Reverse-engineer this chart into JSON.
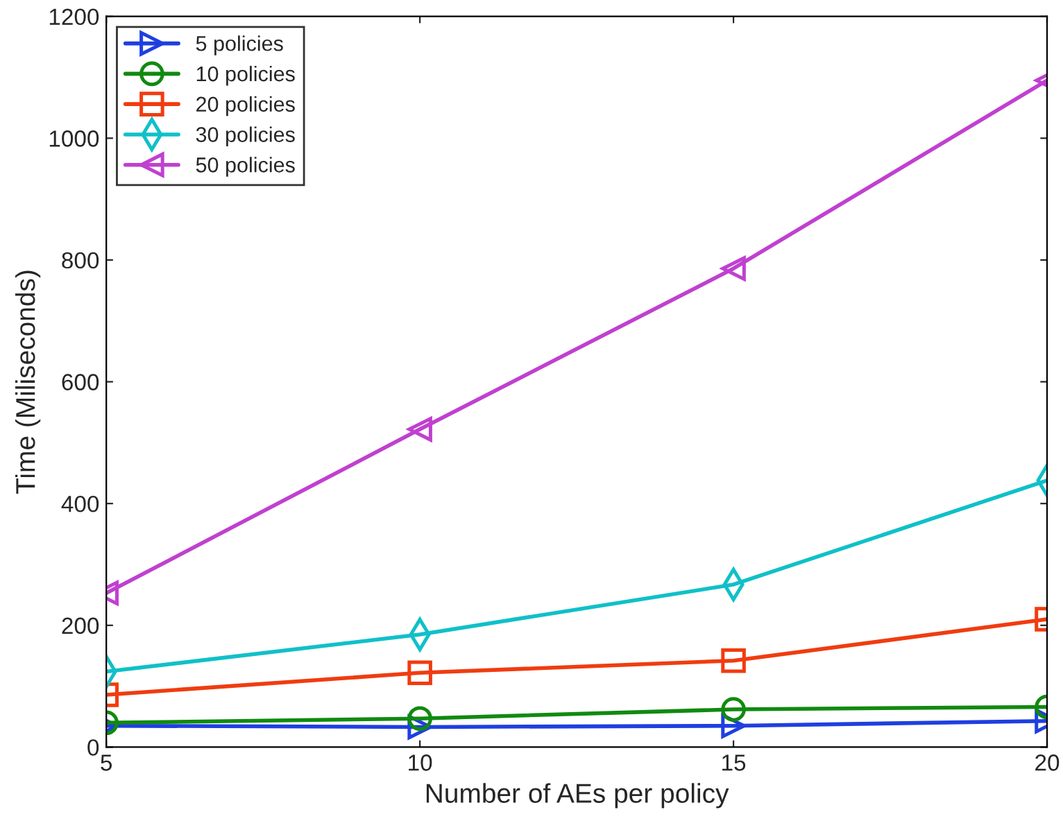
{
  "chart_data": {
    "type": "line",
    "xlabel": "Number of AEs per policy",
    "ylabel": "Time (Miliseconds)",
    "x": [
      5,
      10,
      15,
      20
    ],
    "series": [
      {
        "name": "5 policies",
        "color": "#1f3fe0",
        "marker": "triangle-right",
        "values": [
          35,
          33,
          35,
          43
        ]
      },
      {
        "name": "10 policies",
        "color": "#108a10",
        "marker": "circle",
        "values": [
          40,
          47,
          62,
          66
        ]
      },
      {
        "name": "20 policies",
        "color": "#f03c10",
        "marker": "square",
        "values": [
          86,
          122,
          142,
          210
        ]
      },
      {
        "name": "30 policies",
        "color": "#10c0c8",
        "marker": "diamond",
        "values": [
          124,
          185,
          267,
          438
        ]
      },
      {
        "name": "50 policies",
        "color": "#c040d0",
        "marker": "triangle-left",
        "values": [
          253,
          522,
          786,
          1095
        ]
      }
    ],
    "xlim": [
      5,
      20
    ],
    "xticks": [
      5,
      10,
      15,
      20
    ],
    "ylim": [
      0,
      1200
    ],
    "yticks": [
      0,
      200,
      400,
      600,
      800,
      1000,
      1200
    ],
    "grid": false,
    "legend": "top left",
    "line_style": "solid"
  }
}
